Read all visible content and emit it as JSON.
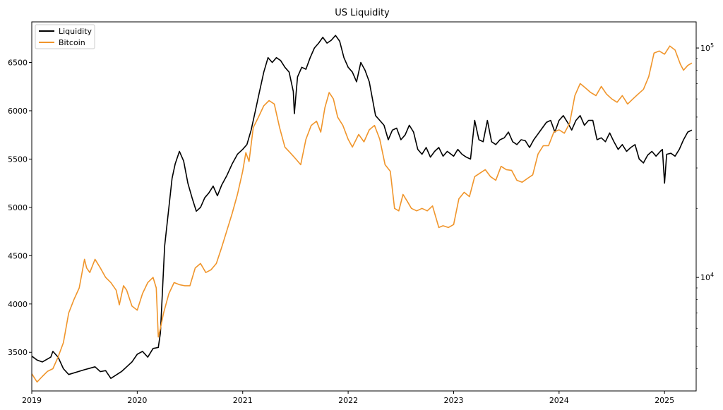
{
  "chart_data": {
    "type": "line",
    "title": "US Liquidity",
    "xlabel": "",
    "ylabel": "",
    "legend_position": "top-left",
    "x_ticks": [
      "2019",
      "2020",
      "2021",
      "2022",
      "2023",
      "2024",
      "2025"
    ],
    "x_range": [
      2019.0,
      2025.3
    ],
    "y_left": {
      "ticks": [
        "3500",
        "4000",
        "4500",
        "5000",
        "5500",
        "6000",
        "6500"
      ],
      "range": [
        3100,
        6920
      ]
    },
    "y_right": {
      "scale": "log",
      "ticks": [
        {
          "base": "10",
          "exp": "4",
          "value": 10000
        },
        {
          "base": "10",
          "exp": "5",
          "value": 100000
        }
      ],
      "range": [
        3200,
        130000
      ]
    },
    "series": [
      {
        "name": "Liquidity",
        "axis": "left",
        "color": "#000000",
        "points": [
          [
            2019.0,
            3460
          ],
          [
            2019.05,
            3420
          ],
          [
            2019.1,
            3400
          ],
          [
            2019.18,
            3450
          ],
          [
            2019.2,
            3510
          ],
          [
            2019.25,
            3450
          ],
          [
            2019.3,
            3330
          ],
          [
            2019.35,
            3270
          ],
          [
            2019.5,
            3320
          ],
          [
            2019.6,
            3350
          ],
          [
            2019.65,
            3300
          ],
          [
            2019.7,
            3310
          ],
          [
            2019.75,
            3230
          ],
          [
            2019.85,
            3300
          ],
          [
            2019.9,
            3350
          ],
          [
            2019.95,
            3400
          ],
          [
            2020.0,
            3480
          ],
          [
            2020.05,
            3510
          ],
          [
            2020.1,
            3450
          ],
          [
            2020.15,
            3540
          ],
          [
            2020.2,
            3550
          ],
          [
            2020.22,
            3700
          ],
          [
            2020.24,
            4150
          ],
          [
            2020.26,
            4600
          ],
          [
            2020.3,
            5000
          ],
          [
            2020.33,
            5300
          ],
          [
            2020.36,
            5450
          ],
          [
            2020.4,
            5580
          ],
          [
            2020.44,
            5480
          ],
          [
            2020.48,
            5250
          ],
          [
            2020.52,
            5100
          ],
          [
            2020.56,
            4960
          ],
          [
            2020.6,
            5000
          ],
          [
            2020.64,
            5100
          ],
          [
            2020.68,
            5150
          ],
          [
            2020.72,
            5220
          ],
          [
            2020.76,
            5120
          ],
          [
            2020.8,
            5230
          ],
          [
            2020.85,
            5330
          ],
          [
            2020.9,
            5450
          ],
          [
            2020.95,
            5550
          ],
          [
            2021.0,
            5600
          ],
          [
            2021.04,
            5650
          ],
          [
            2021.08,
            5800
          ],
          [
            2021.12,
            6000
          ],
          [
            2021.16,
            6200
          ],
          [
            2021.2,
            6400
          ],
          [
            2021.24,
            6550
          ],
          [
            2021.28,
            6500
          ],
          [
            2021.32,
            6550
          ],
          [
            2021.36,
            6520
          ],
          [
            2021.4,
            6450
          ],
          [
            2021.44,
            6400
          ],
          [
            2021.48,
            6200
          ],
          [
            2021.49,
            5970
          ],
          [
            2021.5,
            6100
          ],
          [
            2021.52,
            6350
          ],
          [
            2021.56,
            6450
          ],
          [
            2021.6,
            6430
          ],
          [
            2021.64,
            6550
          ],
          [
            2021.68,
            6650
          ],
          [
            2021.72,
            6700
          ],
          [
            2021.76,
            6760
          ],
          [
            2021.8,
            6700
          ],
          [
            2021.84,
            6730
          ],
          [
            2021.88,
            6780
          ],
          [
            2021.92,
            6720
          ],
          [
            2021.96,
            6550
          ],
          [
            2022.0,
            6450
          ],
          [
            2022.04,
            6400
          ],
          [
            2022.08,
            6300
          ],
          [
            2022.12,
            6500
          ],
          [
            2022.16,
            6420
          ],
          [
            2022.2,
            6300
          ],
          [
            2022.26,
            5950
          ],
          [
            2022.3,
            5900
          ],
          [
            2022.34,
            5850
          ],
          [
            2022.38,
            5700
          ],
          [
            2022.42,
            5800
          ],
          [
            2022.46,
            5820
          ],
          [
            2022.5,
            5700
          ],
          [
            2022.54,
            5750
          ],
          [
            2022.58,
            5850
          ],
          [
            2022.62,
            5780
          ],
          [
            2022.66,
            5600
          ],
          [
            2022.7,
            5550
          ],
          [
            2022.74,
            5620
          ],
          [
            2022.78,
            5520
          ],
          [
            2022.82,
            5580
          ],
          [
            2022.86,
            5620
          ],
          [
            2022.9,
            5530
          ],
          [
            2022.94,
            5580
          ],
          [
            2023.0,
            5530
          ],
          [
            2023.04,
            5600
          ],
          [
            2023.08,
            5550
          ],
          [
            2023.12,
            5520
          ],
          [
            2023.16,
            5500
          ],
          [
            2023.2,
            5900
          ],
          [
            2023.24,
            5700
          ],
          [
            2023.28,
            5680
          ],
          [
            2023.32,
            5900
          ],
          [
            2023.36,
            5680
          ],
          [
            2023.4,
            5650
          ],
          [
            2023.44,
            5700
          ],
          [
            2023.48,
            5720
          ],
          [
            2023.52,
            5780
          ],
          [
            2023.56,
            5680
          ],
          [
            2023.6,
            5650
          ],
          [
            2023.64,
            5700
          ],
          [
            2023.68,
            5690
          ],
          [
            2023.72,
            5620
          ],
          [
            2023.76,
            5700
          ],
          [
            2023.8,
            5760
          ],
          [
            2023.84,
            5820
          ],
          [
            2023.88,
            5880
          ],
          [
            2023.92,
            5900
          ],
          [
            2023.96,
            5780
          ],
          [
            2024.0,
            5900
          ],
          [
            2024.04,
            5950
          ],
          [
            2024.08,
            5880
          ],
          [
            2024.12,
            5800
          ],
          [
            2024.16,
            5900
          ],
          [
            2024.2,
            5950
          ],
          [
            2024.24,
            5850
          ],
          [
            2024.28,
            5900
          ],
          [
            2024.32,
            5900
          ],
          [
            2024.36,
            5700
          ],
          [
            2024.4,
            5720
          ],
          [
            2024.44,
            5680
          ],
          [
            2024.48,
            5770
          ],
          [
            2024.52,
            5680
          ],
          [
            2024.56,
            5600
          ],
          [
            2024.6,
            5650
          ],
          [
            2024.64,
            5580
          ],
          [
            2024.68,
            5620
          ],
          [
            2024.72,
            5650
          ],
          [
            2024.76,
            5500
          ],
          [
            2024.8,
            5460
          ],
          [
            2024.84,
            5540
          ],
          [
            2024.88,
            5580
          ],
          [
            2024.92,
            5530
          ],
          [
            2024.96,
            5580
          ],
          [
            2024.98,
            5600
          ],
          [
            2025.0,
            5250
          ],
          [
            2025.02,
            5550
          ],
          [
            2025.06,
            5560
          ],
          [
            2025.1,
            5530
          ],
          [
            2025.14,
            5600
          ],
          [
            2025.18,
            5700
          ],
          [
            2025.22,
            5780
          ],
          [
            2025.26,
            5800
          ]
        ]
      },
      {
        "name": "Bitcoin",
        "axis": "right",
        "color": "#f0952b",
        "points": [
          [
            2019.0,
            3800
          ],
          [
            2019.05,
            3500
          ],
          [
            2019.1,
            3700
          ],
          [
            2019.15,
            3900
          ],
          [
            2019.2,
            4000
          ],
          [
            2019.25,
            4500
          ],
          [
            2019.3,
            5200
          ],
          [
            2019.35,
            7000
          ],
          [
            2019.4,
            8000
          ],
          [
            2019.45,
            9000
          ],
          [
            2019.5,
            12000
          ],
          [
            2019.52,
            11000
          ],
          [
            2019.55,
            10500
          ],
          [
            2019.6,
            12000
          ],
          [
            2019.65,
            11000
          ],
          [
            2019.7,
            10000
          ],
          [
            2019.75,
            9500
          ],
          [
            2019.8,
            8800
          ],
          [
            2019.83,
            7600
          ],
          [
            2019.87,
            9200
          ],
          [
            2019.9,
            8800
          ],
          [
            2019.95,
            7500
          ],
          [
            2020.0,
            7200
          ],
          [
            2020.05,
            8500
          ],
          [
            2020.1,
            9500
          ],
          [
            2020.15,
            10000
          ],
          [
            2020.18,
            9000
          ],
          [
            2020.2,
            5500
          ],
          [
            2020.22,
            6000
          ],
          [
            2020.25,
            7000
          ],
          [
            2020.3,
            8500
          ],
          [
            2020.35,
            9500
          ],
          [
            2020.4,
            9300
          ],
          [
            2020.45,
            9200
          ],
          [
            2020.5,
            9200
          ],
          [
            2020.55,
            11000
          ],
          [
            2020.6,
            11500
          ],
          [
            2020.65,
            10500
          ],
          [
            2020.7,
            10800
          ],
          [
            2020.75,
            11500
          ],
          [
            2020.8,
            13500
          ],
          [
            2020.85,
            16000
          ],
          [
            2020.9,
            19000
          ],
          [
            2020.95,
            23000
          ],
          [
            2021.0,
            29000
          ],
          [
            2021.03,
            35000
          ],
          [
            2021.06,
            32000
          ],
          [
            2021.1,
            45000
          ],
          [
            2021.15,
            50000
          ],
          [
            2021.2,
            56000
          ],
          [
            2021.25,
            59000
          ],
          [
            2021.3,
            57000
          ],
          [
            2021.35,
            45000
          ],
          [
            2021.4,
            37000
          ],
          [
            2021.45,
            35000
          ],
          [
            2021.5,
            33000
          ],
          [
            2021.55,
            31000
          ],
          [
            2021.6,
            40000
          ],
          [
            2021.65,
            46000
          ],
          [
            2021.7,
            48000
          ],
          [
            2021.74,
            43000
          ],
          [
            2021.78,
            55000
          ],
          [
            2021.82,
            64000
          ],
          [
            2021.86,
            60000
          ],
          [
            2021.9,
            50000
          ],
          [
            2021.95,
            46000
          ],
          [
            2022.0,
            40000
          ],
          [
            2022.04,
            37000
          ],
          [
            2022.1,
            42000
          ],
          [
            2022.15,
            39000
          ],
          [
            2022.2,
            44000
          ],
          [
            2022.25,
            46000
          ],
          [
            2022.3,
            40000
          ],
          [
            2022.35,
            31000
          ],
          [
            2022.4,
            29000
          ],
          [
            2022.44,
            20000
          ],
          [
            2022.48,
            19500
          ],
          [
            2022.52,
            23000
          ],
          [
            2022.56,
            21500
          ],
          [
            2022.6,
            20000
          ],
          [
            2022.65,
            19500
          ],
          [
            2022.7,
            20000
          ],
          [
            2022.75,
            19500
          ],
          [
            2022.8,
            20500
          ],
          [
            2022.86,
            16500
          ],
          [
            2022.9,
            16800
          ],
          [
            2022.95,
            16500
          ],
          [
            2023.0,
            17000
          ],
          [
            2023.05,
            22000
          ],
          [
            2023.1,
            23500
          ],
          [
            2023.15,
            22500
          ],
          [
            2023.2,
            27500
          ],
          [
            2023.25,
            28500
          ],
          [
            2023.3,
            29500
          ],
          [
            2023.35,
            27500
          ],
          [
            2023.4,
            26500
          ],
          [
            2023.45,
            30500
          ],
          [
            2023.5,
            29500
          ],
          [
            2023.55,
            29300
          ],
          [
            2023.6,
            26500
          ],
          [
            2023.65,
            26000
          ],
          [
            2023.7,
            27000
          ],
          [
            2023.75,
            28000
          ],
          [
            2023.8,
            34500
          ],
          [
            2023.85,
            37500
          ],
          [
            2023.9,
            37500
          ],
          [
            2023.95,
            43000
          ],
          [
            2024.0,
            44000
          ],
          [
            2024.05,
            42500
          ],
          [
            2024.1,
            47000
          ],
          [
            2024.15,
            62000
          ],
          [
            2024.2,
            70000
          ],
          [
            2024.25,
            67000
          ],
          [
            2024.3,
            64000
          ],
          [
            2024.35,
            62000
          ],
          [
            2024.4,
            68000
          ],
          [
            2024.45,
            63000
          ],
          [
            2024.5,
            60000
          ],
          [
            2024.55,
            58000
          ],
          [
            2024.6,
            62000
          ],
          [
            2024.65,
            57000
          ],
          [
            2024.7,
            60000
          ],
          [
            2024.75,
            63000
          ],
          [
            2024.8,
            66000
          ],
          [
            2024.85,
            75000
          ],
          [
            2024.9,
            95000
          ],
          [
            2024.95,
            97000
          ],
          [
            2025.0,
            94000
          ],
          [
            2025.05,
            102000
          ],
          [
            2025.1,
            98000
          ],
          [
            2025.15,
            85000
          ],
          [
            2025.18,
            80000
          ],
          [
            2025.22,
            84000
          ],
          [
            2025.26,
            86000
          ]
        ]
      }
    ]
  }
}
